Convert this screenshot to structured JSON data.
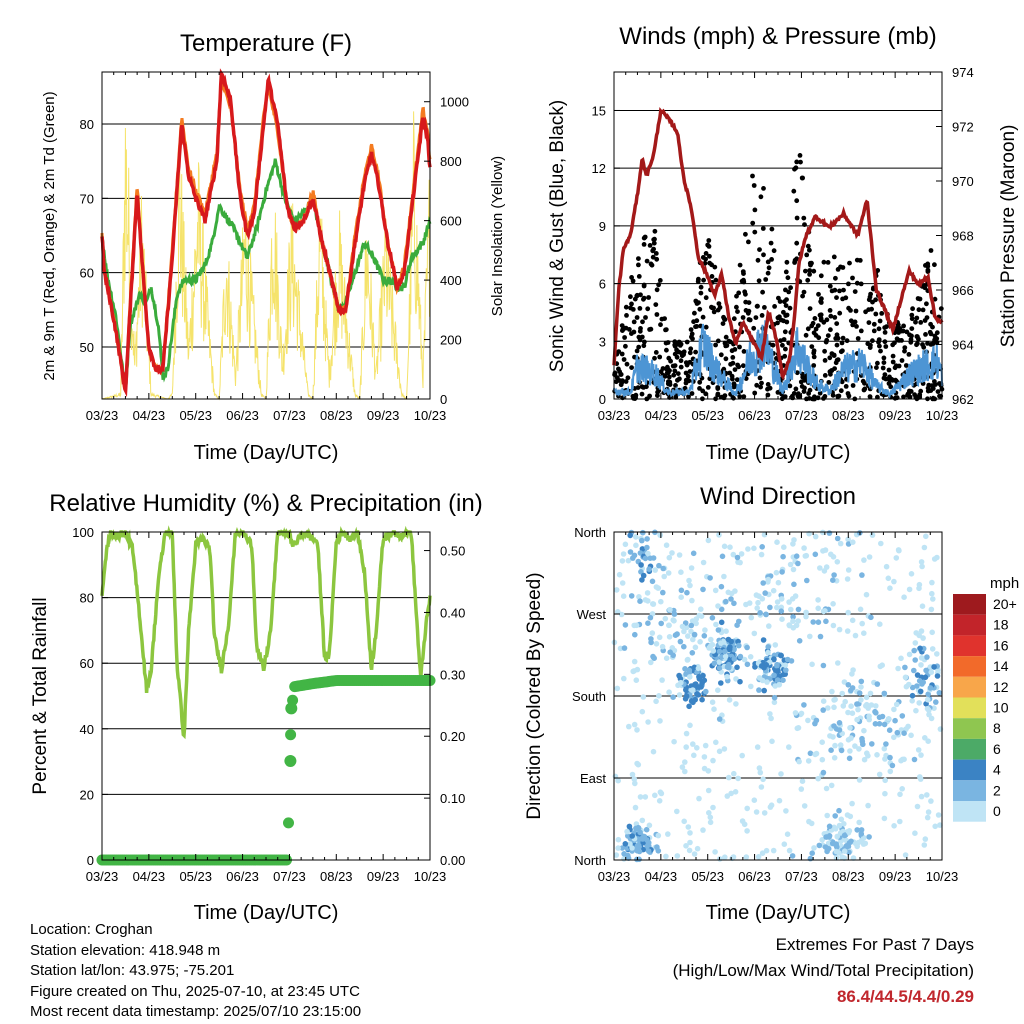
{
  "x_ticks": [
    "03/23",
    "04/23",
    "05/23",
    "06/23",
    "07/23",
    "08/23",
    "09/23",
    "10/23"
  ],
  "x_label": "Time (Day/UTC)",
  "colors": {
    "temp_2m": "#d7191c",
    "temp_9m": "#f47b20",
    "dewpoint": "#3aab3c",
    "insolation": "#f5e36b",
    "wind": "#000000",
    "gust": "#4d95d4",
    "pressure": "#a31919",
    "rh": "#8cc63f",
    "precip": "#42b545",
    "extremes": "#c0272d"
  },
  "chart_data": [
    {
      "type": "line",
      "title": "Temperature (F)",
      "ylabel": "2m & 9m T (Red, Orange) & 2m Td (Green)",
      "ylabel_right": "Solar Insolation (Yellow)",
      "ylim": [
        43,
        87
      ],
      "yticks": [
        50,
        60,
        70,
        80
      ],
      "ylim_right": [
        0,
        1100
      ],
      "yticks_right": [
        0,
        200,
        400,
        600,
        800,
        1000
      ],
      "series": [
        {
          "x": [
            0,
            0.05,
            0.15,
            0.3,
            0.5,
            0.6,
            0.75,
            0.85,
            1,
            1.15,
            1.3,
            1.5,
            1.7,
            1.85,
            2,
            2.2,
            2.45,
            2.55,
            2.75,
            2.95,
            3.1,
            3.25,
            3.45,
            3.55,
            3.75,
            3.95,
            4.1,
            4.3,
            4.5,
            4.7,
            4.9,
            5.05,
            5.2,
            5.4,
            5.6,
            5.75,
            5.9,
            6.1,
            6.3,
            6.45,
            6.6,
            6.85,
            6.95,
            7
          ],
          "y": [
            65,
            60,
            57,
            52,
            44,
            55,
            71,
            62,
            50,
            47,
            47,
            62,
            80,
            73,
            70,
            67,
            75,
            87,
            83,
            70,
            65,
            68,
            80,
            86,
            80,
            69,
            66,
            67,
            70,
            64,
            59,
            55,
            55,
            64,
            72,
            76,
            72,
            64,
            58,
            60,
            68,
            81,
            78,
            74
          ]
        },
        {
          "x": [
            0,
            0.05,
            0.15,
            0.3,
            0.5,
            0.6,
            0.75,
            0.85,
            1,
            1.15,
            1.3,
            1.5,
            1.7,
            1.85,
            2,
            2.2,
            2.45,
            2.55,
            2.75,
            2.95,
            3.1,
            3.25,
            3.45,
            3.55,
            3.75,
            3.95,
            4.1,
            4.3,
            4.5,
            4.7,
            4.9,
            5.05,
            5.2,
            5.4,
            5.6,
            5.75,
            5.9,
            6.1,
            6.3,
            6.45,
            6.6,
            6.85,
            6.95,
            7
          ],
          "y": [
            65,
            60,
            57,
            52,
            44,
            56,
            72,
            62,
            50,
            47,
            47,
            63,
            81,
            74,
            71,
            68,
            76,
            86,
            82,
            71,
            66,
            69,
            81,
            85,
            79,
            69,
            66,
            67,
            71,
            64,
            59,
            55,
            55,
            65,
            73,
            77,
            73,
            64,
            58,
            61,
            69,
            82,
            79,
            75
          ]
        },
        {
          "x": [
            0,
            0.1,
            0.3,
            0.5,
            0.6,
            0.8,
            0.95,
            1.05,
            1.2,
            1.3,
            1.4,
            1.6,
            1.75,
            2,
            2.2,
            2.35,
            2.5,
            2.8,
            2.95,
            3.1,
            3.3,
            3.5,
            3.7,
            3.9,
            4.1,
            4.3,
            4.5,
            4.7,
            4.9,
            5.05,
            5.2,
            5.4,
            5.6,
            5.8,
            6,
            6.15,
            6.3,
            6.45,
            6.6,
            6.85,
            7
          ],
          "y": [
            65,
            60,
            54,
            44,
            53,
            57,
            56,
            58,
            53,
            46,
            47,
            57,
            59,
            59,
            61,
            64,
            69,
            66,
            64,
            62,
            66,
            71,
            75,
            70,
            67,
            68,
            70,
            64,
            59,
            55,
            56,
            60,
            64,
            62,
            59,
            59,
            58,
            58,
            62,
            64,
            67
          ]
        },
        {
          "x": [
            0,
            0.4,
            0.5,
            0.7,
            0.85,
            1.05,
            1.4,
            1.5,
            1.65,
            1.85,
            2.05,
            2.4,
            2.5,
            2.65,
            2.85,
            3.05,
            3.4,
            3.5,
            3.65,
            3.85,
            4.05,
            4.4,
            4.5,
            4.65,
            4.85,
            5.05,
            5.4,
            5.5,
            5.65,
            5.85,
            6.05,
            6.4,
            6.5,
            6.65,
            6.85,
            7
          ],
          "y": [
            0,
            20,
            1050,
            150,
            700,
            20,
            0,
            20,
            900,
            200,
            780,
            20,
            0,
            600,
            100,
            680,
            20,
            0,
            800,
            150,
            650,
            20,
            0,
            700,
            100,
            620,
            20,
            0,
            650,
            100,
            600,
            20,
            0,
            900,
            100,
            820
          ]
        }
      ]
    },
    {
      "type": "line",
      "title": "Winds (mph) & Pressure (mb)",
      "ylabel": "Sonic Wind & Gust (Blue, Black)",
      "ylabel_right": "Station Pressure (Maroon)",
      "ylim": [
        0,
        17
      ],
      "yticks": [
        0,
        3,
        6,
        9,
        12,
        15
      ],
      "ylim_right": [
        962,
        974
      ],
      "yticks_right": [
        962,
        964,
        966,
        968,
        970,
        972,
        974
      ],
      "series": [
        {
          "x": [
            0,
            0.1,
            0.2,
            0.35,
            0.5,
            0.6,
            0.7,
            0.85,
            1,
            1.2,
            1.35,
            1.5,
            1.65,
            1.8,
            2,
            2.15,
            2.3,
            2.45,
            2.6,
            2.75,
            2.85,
            3,
            3.15,
            3.3,
            3.45,
            3.6,
            3.75,
            3.85,
            3.95,
            4.1,
            4.3,
            4.6,
            4.9,
            5.2,
            5.4,
            5.6,
            5.8,
            5.95,
            6.1,
            6.3,
            6.5,
            6.7,
            6.85,
            7
          ],
          "y": [
            963.2,
            966,
            967.5,
            968,
            969.5,
            970.8,
            970.2,
            971,
            972.6,
            972.2,
            971.8,
            970,
            969,
            967.2,
            966.5,
            965.8,
            966.6,
            965,
            964,
            964.8,
            964.5,
            964,
            963.5,
            965.2,
            964.3,
            962.8,
            963.5,
            965,
            967,
            968,
            968.7,
            968.3,
            968.8,
            968,
            969.3,
            966,
            965.2,
            964.5,
            965.5,
            966.7,
            966.2,
            966.5,
            965,
            964.8
          ]
        },
        {
          "x": [
            0,
            0.35,
            0.5,
            0.9,
            1.15,
            1.6,
            1.9,
            2.25,
            2.6,
            2.9,
            3.2,
            3.6,
            3.9,
            4.3,
            4.6,
            4.9,
            5.3,
            5.6,
            5.9,
            6.3,
            6.6,
            6.9,
            7
          ],
          "y": [
            0.5,
            0.4,
            2,
            1.5,
            0.4,
            0.4,
            3.3,
            1.5,
            0.3,
            2.5,
            3.5,
            0.5,
            3.2,
            1,
            0.5,
            1.8,
            2.2,
            0.8,
            0.3,
            1.5,
            2,
            2.3,
            1.5
          ]
        }
      ],
      "wind_envelope": {
        "x": [
          0,
          0.5,
          0.9,
          1.15,
          1.6,
          1.95,
          2.3,
          2.5,
          2.9,
          3.3,
          3.6,
          3.9,
          4.3,
          4.6,
          4.9,
          5.3,
          5.6,
          5.9,
          6.3,
          6.6,
          6.8,
          7
        ],
        "y": [
          2,
          8.5,
          9,
          3,
          3,
          9,
          6,
          3,
          12,
          11,
          4,
          14.5,
          6,
          8,
          7,
          8,
          7,
          4,
          4,
          7,
          8,
          6
        ]
      }
    },
    {
      "type": "line",
      "title": "Relative Humidity (%) & Precipitation (in)",
      "ylabel": "Percent & Total Rainfall",
      "ylim": [
        0,
        100
      ],
      "yticks": [
        0,
        20,
        40,
        60,
        80,
        100
      ],
      "ylim_right": [
        0,
        0.53
      ],
      "yticks_right": [
        "0.00",
        "0.10",
        "0.20",
        "0.30",
        "0.40",
        "0.50"
      ],
      "series": [
        {
          "x": [
            0,
            0.1,
            0.2,
            0.35,
            0.5,
            0.65,
            0.8,
            0.95,
            1.05,
            1.2,
            1.35,
            1.5,
            1.6,
            1.75,
            1.85,
            2,
            2.15,
            2.3,
            2.4,
            2.55,
            2.7,
            2.85,
            3,
            3.2,
            3.3,
            3.45,
            3.6,
            3.75,
            3.85,
            4,
            4.1,
            4.3,
            4.6,
            4.75,
            4.85,
            5,
            5.15,
            5.3,
            5.45,
            5.6,
            5.75,
            5.85,
            6,
            6.2,
            6.35,
            6.5,
            6.6,
            6.7,
            6.8,
            6.9,
            7
          ],
          "y": [
            80,
            95,
            100,
            99,
            100,
            95,
            75,
            52,
            58,
            85,
            100,
            100,
            60,
            37,
            70,
            96,
            98,
            95,
            68,
            58,
            72,
            100,
            100,
            96,
            65,
            58,
            70,
            100,
            100,
            99,
            96,
            100,
            97,
            62,
            62,
            97,
            100,
            98,
            100,
            88,
            58,
            70,
            98,
            100,
            99,
            100,
            100,
            77,
            55,
            70,
            80
          ]
        },
        {
          "x": [
            0,
            1,
            2,
            3,
            3.97,
            4.0,
            4.05,
            4.1,
            4.5,
            5,
            6,
            7
          ],
          "y": [
            0,
            0,
            0,
            0,
            0,
            0.16,
            0.245,
            0.28,
            0.285,
            0.29,
            0.29,
            0.29
          ]
        }
      ]
    },
    {
      "type": "scatter",
      "title": "Wind Direction",
      "ylabel": "Direction (Colored By Speed)",
      "ylim": [
        0,
        360
      ],
      "yticks": [
        "North",
        "East",
        "South",
        "West",
        "North"
      ],
      "legend_title": "mph",
      "legend_labels": [
        "20+",
        "18",
        "16",
        "14",
        "12",
        "10",
        "8",
        "6",
        "4",
        "2",
        "0"
      ],
      "legend_colors": [
        "#9e1a1e",
        "#c2242a",
        "#e0332d",
        "#f26a2a",
        "#f8a64a",
        "#e2e05a",
        "#8fc650",
        "#4caa67",
        "#3b83c4",
        "#7ab5e1",
        "#bfe4f5"
      ],
      "clusters": [
        {
          "x": 0.5,
          "y": 20,
          "sx": 0.35,
          "sy": 18,
          "n": 90,
          "speed": 2
        },
        {
          "x": 0.6,
          "y": 330,
          "sx": 0.2,
          "sy": 20,
          "n": 25,
          "speed": 2
        },
        {
          "x": 1.7,
          "y": 195,
          "sx": 0.25,
          "sy": 20,
          "n": 60,
          "speed": 3
        },
        {
          "x": 2.4,
          "y": 225,
          "sx": 0.3,
          "sy": 20,
          "n": 90,
          "speed": 3
        },
        {
          "x": 3.4,
          "y": 210,
          "sx": 0.3,
          "sy": 20,
          "n": 80,
          "speed": 3
        },
        {
          "x": 1.4,
          "y": 260,
          "sx": 1.3,
          "sy": 70,
          "n": 110,
          "speed": 1
        },
        {
          "x": 4.8,
          "y": 20,
          "sx": 0.5,
          "sy": 18,
          "n": 90,
          "speed": 1
        },
        {
          "x": 5.3,
          "y": 150,
          "sx": 1.2,
          "sy": 50,
          "n": 120,
          "speed": 1
        },
        {
          "x": 6.6,
          "y": 200,
          "sx": 0.3,
          "sy": 30,
          "n": 50,
          "speed": 2
        },
        {
          "x": 3.8,
          "y": 300,
          "sx": 1.4,
          "sy": 60,
          "n": 80,
          "speed": 1
        }
      ]
    }
  ],
  "info": {
    "location": "Location: Croghan",
    "elevation": "Station elevation: 418.948 m",
    "latlon": "Station lat/lon: 43.975; -75.201",
    "created": "Figure created on Thu, 2025-07-10, at 23:45 UTC",
    "recent": "Most recent data timestamp: 2025/07/10 23:15:00"
  },
  "extremes": {
    "title": "Extremes For Past 7 Days",
    "subtitle": "(High/Low/Max Wind/Total Precipitation)",
    "values": "86.4/44.5/4.4/0.29"
  }
}
